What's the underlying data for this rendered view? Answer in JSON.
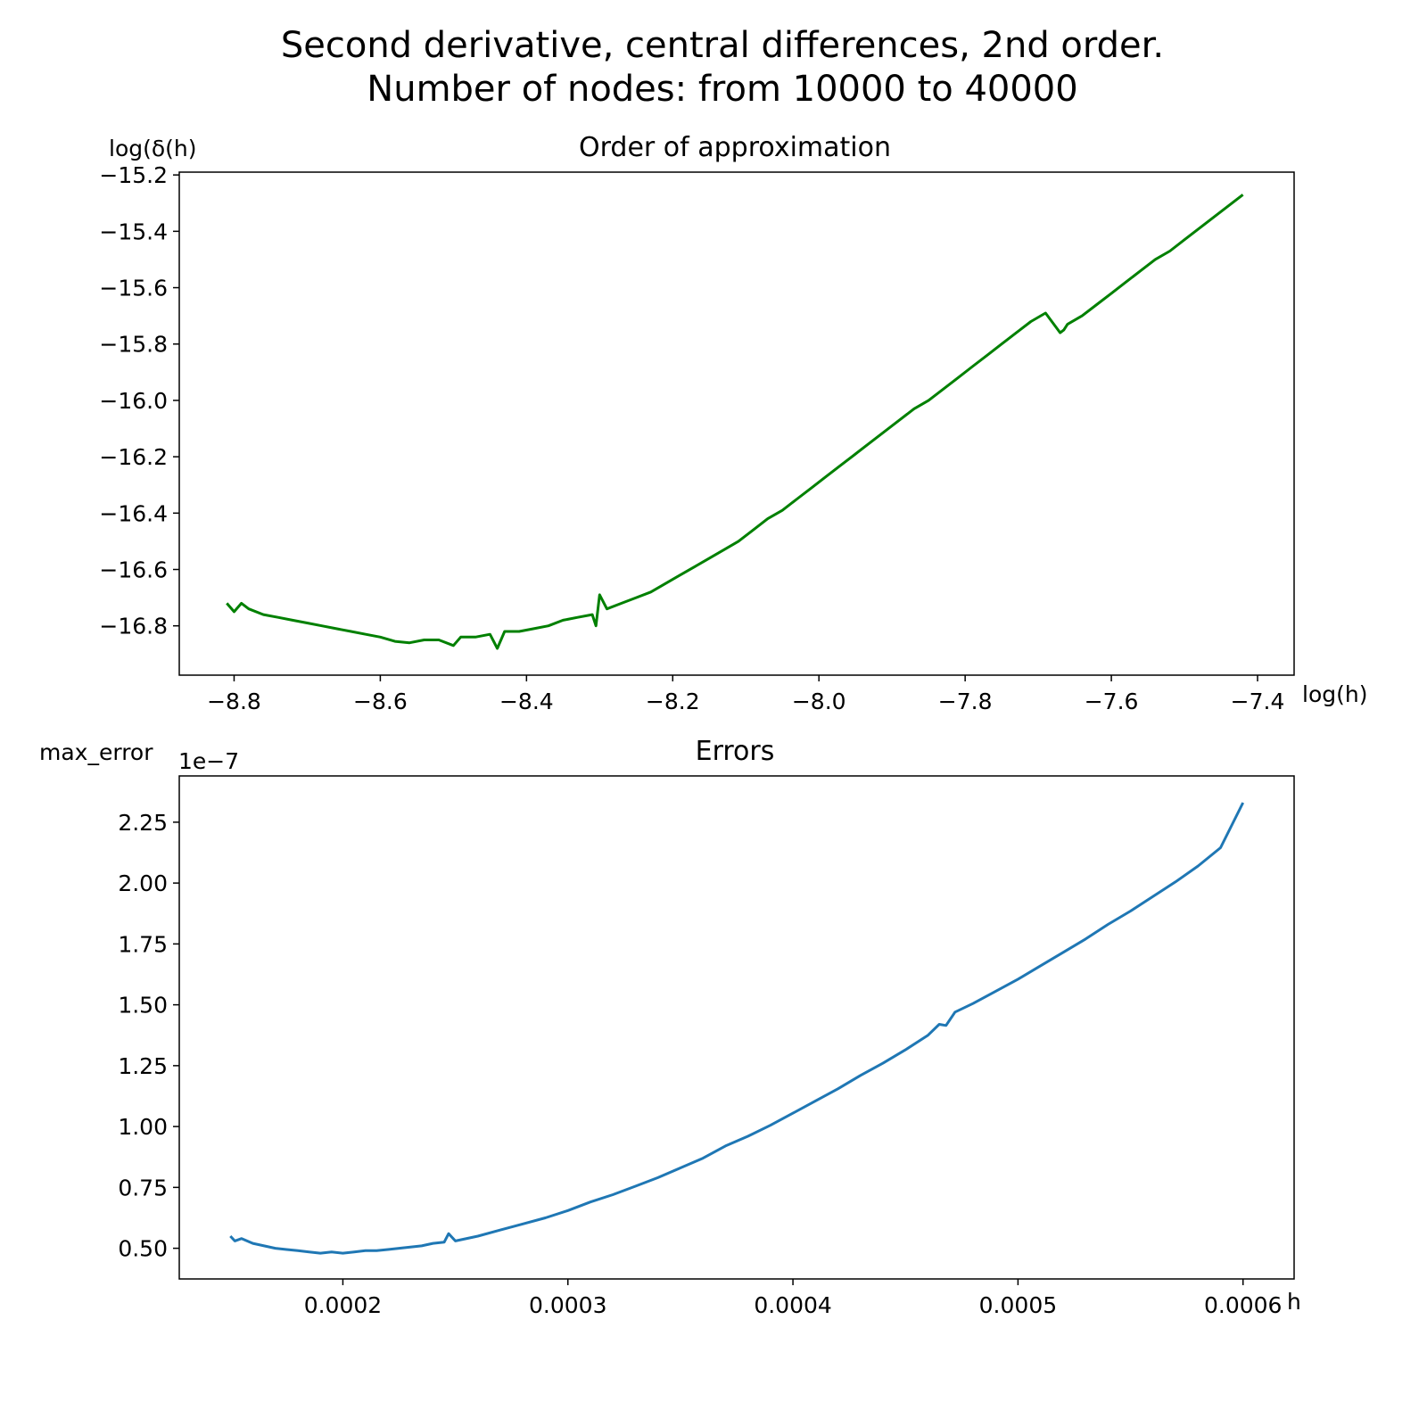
{
  "figure": {
    "suptitle_line1": "Second derivative, central differences, 2nd order.",
    "suptitle_line2": "Number of nodes: from 10000 to 40000"
  },
  "chart_data": [
    {
      "type": "line",
      "title": "Order of approximation",
      "xlabel": "log(h)",
      "ylabel": "log(δ(h)",
      "xlim": [
        -8.875,
        -7.35
      ],
      "ylim": [
        -16.975,
        -15.19
      ],
      "xticks": [
        -8.8,
        -8.6,
        -8.4,
        -8.2,
        -8.0,
        -7.8,
        -7.6,
        -7.4
      ],
      "xtick_labels": [
        "−8.8",
        "−8.6",
        "−8.4",
        "−8.2",
        "−8.0",
        "−7.8",
        "−7.6",
        "−7.4"
      ],
      "yticks": [
        -15.2,
        -15.4,
        -15.6,
        -15.8,
        -16.0,
        -16.2,
        -16.4,
        -16.6,
        -16.8
      ],
      "ytick_labels": [
        "−15.2",
        "−15.4",
        "−15.6",
        "−15.8",
        "−16.0",
        "−16.2",
        "−16.4",
        "−16.6",
        "−16.8"
      ],
      "grid": false,
      "color": "#008000",
      "series": [
        {
          "x": [
            -8.81,
            -8.8,
            -8.79,
            -8.78,
            -8.76,
            -8.74,
            -8.72,
            -8.7,
            -8.68,
            -8.66,
            -8.64,
            -8.62,
            -8.6,
            -8.58,
            -8.56,
            -8.54,
            -8.52,
            -8.5,
            -8.49,
            -8.47,
            -8.45,
            -8.44,
            -8.43,
            -8.41,
            -8.39,
            -8.37,
            -8.35,
            -8.33,
            -8.31,
            -8.305,
            -8.3,
            -8.29,
            -8.27,
            -8.25,
            -8.23,
            -8.21,
            -8.19,
            -8.17,
            -8.15,
            -8.13,
            -8.11,
            -8.09,
            -8.07,
            -8.05,
            -8.03,
            -8.01,
            -7.99,
            -7.97,
            -7.95,
            -7.93,
            -7.91,
            -7.89,
            -7.87,
            -7.85,
            -7.83,
            -7.81,
            -7.79,
            -7.77,
            -7.75,
            -7.73,
            -7.71,
            -7.69,
            -7.67,
            -7.665,
            -7.66,
            -7.64,
            -7.62,
            -7.6,
            -7.58,
            -7.56,
            -7.54,
            -7.52,
            -7.5,
            -7.48,
            -7.46,
            -7.44,
            -7.42
          ],
          "y": [
            -16.72,
            -16.75,
            -16.72,
            -16.74,
            -16.76,
            -16.77,
            -16.78,
            -16.79,
            -16.8,
            -16.81,
            -16.82,
            -16.83,
            -16.84,
            -16.855,
            -16.86,
            -16.85,
            -16.85,
            -16.87,
            -16.84,
            -16.84,
            -16.83,
            -16.88,
            -16.82,
            -16.82,
            -16.81,
            -16.8,
            -16.78,
            -16.77,
            -16.76,
            -16.8,
            -16.69,
            -16.74,
            -16.72,
            -16.7,
            -16.68,
            -16.65,
            -16.62,
            -16.59,
            -16.56,
            -16.53,
            -16.5,
            -16.46,
            -16.42,
            -16.39,
            -16.35,
            -16.31,
            -16.27,
            -16.23,
            -16.19,
            -16.15,
            -16.11,
            -16.07,
            -16.03,
            -16.0,
            -15.96,
            -15.92,
            -15.88,
            -15.84,
            -15.8,
            -15.76,
            -15.72,
            -15.69,
            -15.76,
            -15.75,
            -15.73,
            -15.7,
            -15.66,
            -15.62,
            -15.58,
            -15.54,
            -15.5,
            -15.47,
            -15.43,
            -15.39,
            -15.35,
            -15.31,
            -15.27
          ]
        }
      ]
    },
    {
      "type": "line",
      "title": "Errors",
      "xlabel": "h",
      "ylabel": "max_error",
      "offset_label": "1e−7",
      "xlim": [
        0.0001273,
        0.0006227
      ],
      "ylim": [
        0.374,
        2.44
      ],
      "xticks": [
        0.0002,
        0.0003,
        0.0004,
        0.0005,
        0.0006
      ],
      "xtick_labels": [
        "0.0002",
        "0.0003",
        "0.0004",
        "0.0005",
        "0.0006"
      ],
      "yticks": [
        0.5,
        0.75,
        1.0,
        1.25,
        1.5,
        1.75,
        2.0,
        2.25
      ],
      "ytick_labels": [
        "0.50",
        "0.75",
        "1.00",
        "1.25",
        "1.50",
        "1.75",
        "2.00",
        "2.25"
      ],
      "grid": false,
      "color": "#1f77b4",
      "series": [
        {
          "x": [
            0.00015,
            0.000152,
            0.000155,
            0.00016,
            0.000165,
            0.00017,
            0.000175,
            0.00018,
            0.000185,
            0.00019,
            0.000195,
            0.0002,
            0.000205,
            0.00021,
            0.000215,
            0.00022,
            0.000225,
            0.00023,
            0.000235,
            0.00024,
            0.000245,
            0.000247,
            0.00025,
            0.00026,
            0.00027,
            0.00028,
            0.00029,
            0.0003,
            0.00031,
            0.00032,
            0.00033,
            0.00034,
            0.00035,
            0.00036,
            0.00037,
            0.00038,
            0.00039,
            0.0004,
            0.00041,
            0.00042,
            0.00043,
            0.00044,
            0.00045,
            0.00046,
            0.000465,
            0.000468,
            0.000472,
            0.00048,
            0.00049,
            0.0005,
            0.00051,
            0.00052,
            0.00053,
            0.00054,
            0.00055,
            0.00056,
            0.00057,
            0.00058,
            0.00059,
            0.0006
          ],
          "y": [
            0.55,
            0.53,
            0.54,
            0.52,
            0.51,
            0.5,
            0.495,
            0.49,
            0.485,
            0.48,
            0.485,
            0.48,
            0.485,
            0.49,
            0.49,
            0.495,
            0.5,
            0.505,
            0.51,
            0.52,
            0.525,
            0.56,
            0.53,
            0.55,
            0.575,
            0.6,
            0.625,
            0.655,
            0.69,
            0.72,
            0.755,
            0.79,
            0.83,
            0.87,
            0.92,
            0.96,
            1.005,
            1.055,
            1.105,
            1.155,
            1.21,
            1.26,
            1.315,
            1.375,
            1.42,
            1.415,
            1.47,
            1.505,
            1.555,
            1.605,
            1.66,
            1.715,
            1.77,
            1.83,
            1.885,
            1.945,
            2.005,
            2.07,
            2.145,
            2.33
          ]
        }
      ]
    }
  ]
}
